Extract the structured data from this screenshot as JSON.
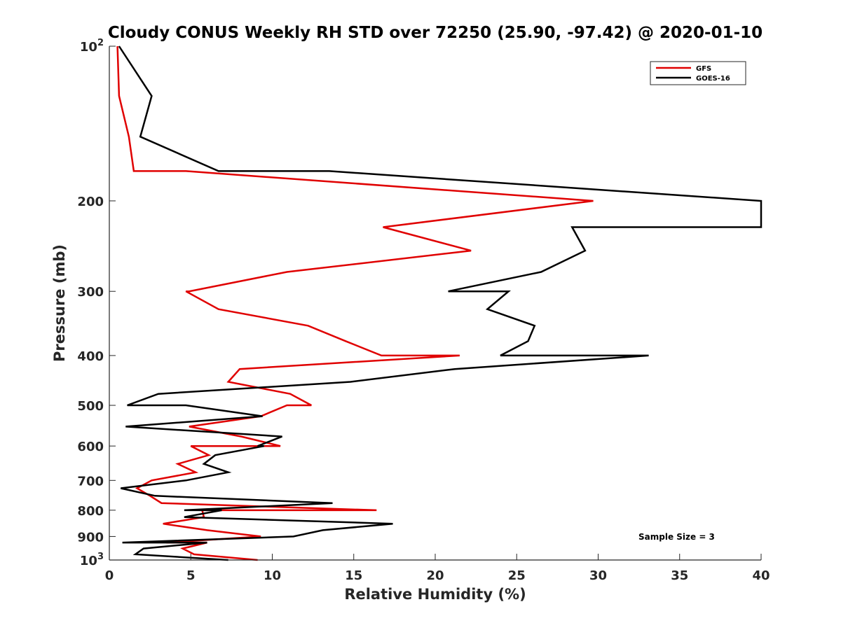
{
  "chart_data": {
    "type": "line",
    "title": "Cloudy CONUS Weekly RH STD over 72250 (25.90, -97.42) @ 2020-01-10",
    "xlabel": "Relative Humidity (%)",
    "ylabel": "Pressure (mb)",
    "xlim": [
      0,
      40
    ],
    "ylim": [
      100,
      1000
    ],
    "y_scale": "log",
    "y_reversed": true,
    "x_ticks": [
      0,
      5,
      10,
      15,
      20,
      25,
      30,
      35,
      40
    ],
    "x_tick_labels": [
      "0",
      "5",
      "10",
      "15",
      "20",
      "25",
      "30",
      "35",
      "40"
    ],
    "y_ticks": [
      100,
      200,
      300,
      400,
      500,
      600,
      700,
      800,
      900,
      1000
    ],
    "y_tick_labels": [
      {
        "base": "10",
        "exp": "2"
      },
      {
        "base": "200",
        "exp": ""
      },
      {
        "base": "300",
        "exp": ""
      },
      {
        "base": "400",
        "exp": ""
      },
      {
        "base": "500",
        "exp": ""
      },
      {
        "base": "600",
        "exp": ""
      },
      {
        "base": "700",
        "exp": ""
      },
      {
        "base": "800",
        "exp": ""
      },
      {
        "base": "900",
        "exp": ""
      },
      {
        "base": "10",
        "exp": "3"
      }
    ],
    "grid": false,
    "legend_position": "top-right",
    "annotation": "Sample Size = 3",
    "series": [
      {
        "name": "GFS",
        "color": "#e00000",
        "points": [
          [
            0.5,
            100
          ],
          [
            0.6,
            125
          ],
          [
            1.2,
            150
          ],
          [
            1.5,
            175
          ],
          [
            4.7,
            175
          ],
          [
            29.7,
            200
          ],
          [
            16.8,
            225
          ],
          [
            22.2,
            250
          ],
          [
            10.9,
            275
          ],
          [
            4.9,
            300
          ],
          [
            4.7,
            300
          ],
          [
            6.7,
            325
          ],
          [
            12.2,
            350
          ],
          [
            14.5,
            375
          ],
          [
            16.7,
            400
          ],
          [
            21.5,
            400
          ],
          [
            8.0,
            425
          ],
          [
            7.3,
            450
          ],
          [
            11.1,
            475
          ],
          [
            12.4,
            500
          ],
          [
            10.9,
            500
          ],
          [
            9.3,
            525
          ],
          [
            4.9,
            550
          ],
          [
            8.1,
            575
          ],
          [
            10.5,
            600
          ],
          [
            5.0,
            600
          ],
          [
            6.1,
            625
          ],
          [
            4.2,
            650
          ],
          [
            5.3,
            675
          ],
          [
            2.6,
            700
          ],
          [
            1.7,
            725
          ],
          [
            2.5,
            750
          ],
          [
            3.2,
            775
          ],
          [
            16.4,
            800
          ],
          [
            5.7,
            800
          ],
          [
            5.8,
            825
          ],
          [
            3.3,
            850
          ],
          [
            6.0,
            875
          ],
          [
            9.3,
            900
          ],
          [
            3.5,
            925
          ],
          [
            6.0,
            925
          ],
          [
            4.5,
            950
          ],
          [
            5.2,
            975
          ],
          [
            9.1,
            1000
          ]
        ]
      },
      {
        "name": "GOES-16",
        "color": "#000000",
        "points": [
          [
            0.6,
            100
          ],
          [
            2.6,
            125
          ],
          [
            1.9,
            150
          ],
          [
            6.7,
            175
          ],
          [
            13.5,
            175
          ],
          [
            40.0,
            200
          ],
          [
            40.0,
            225
          ],
          [
            28.4,
            225
          ],
          [
            29.2,
            250
          ],
          [
            26.5,
            275
          ],
          [
            20.8,
            300
          ],
          [
            24.5,
            300
          ],
          [
            23.2,
            325
          ],
          [
            26.1,
            350
          ],
          [
            25.7,
            375
          ],
          [
            24.0,
            400
          ],
          [
            33.1,
            400
          ],
          [
            21.2,
            425
          ],
          [
            14.8,
            450
          ],
          [
            3.0,
            475
          ],
          [
            1.1,
            500
          ],
          [
            4.7,
            500
          ],
          [
            9.4,
            525
          ],
          [
            1.0,
            550
          ],
          [
            10.6,
            575
          ],
          [
            9.1,
            600
          ],
          [
            9.5,
            600
          ],
          [
            6.5,
            625
          ],
          [
            5.8,
            650
          ],
          [
            7.3,
            675
          ],
          [
            4.7,
            700
          ],
          [
            0.7,
            725
          ],
          [
            2.8,
            750
          ],
          [
            13.7,
            775
          ],
          [
            4.6,
            800
          ],
          [
            6.9,
            800
          ],
          [
            4.6,
            825
          ],
          [
            17.4,
            850
          ],
          [
            13.1,
            875
          ],
          [
            11.3,
            900
          ],
          [
            0.8,
            925
          ],
          [
            6.0,
            925
          ],
          [
            2.1,
            950
          ],
          [
            1.6,
            975
          ],
          [
            7.3,
            1000
          ]
        ]
      }
    ]
  }
}
